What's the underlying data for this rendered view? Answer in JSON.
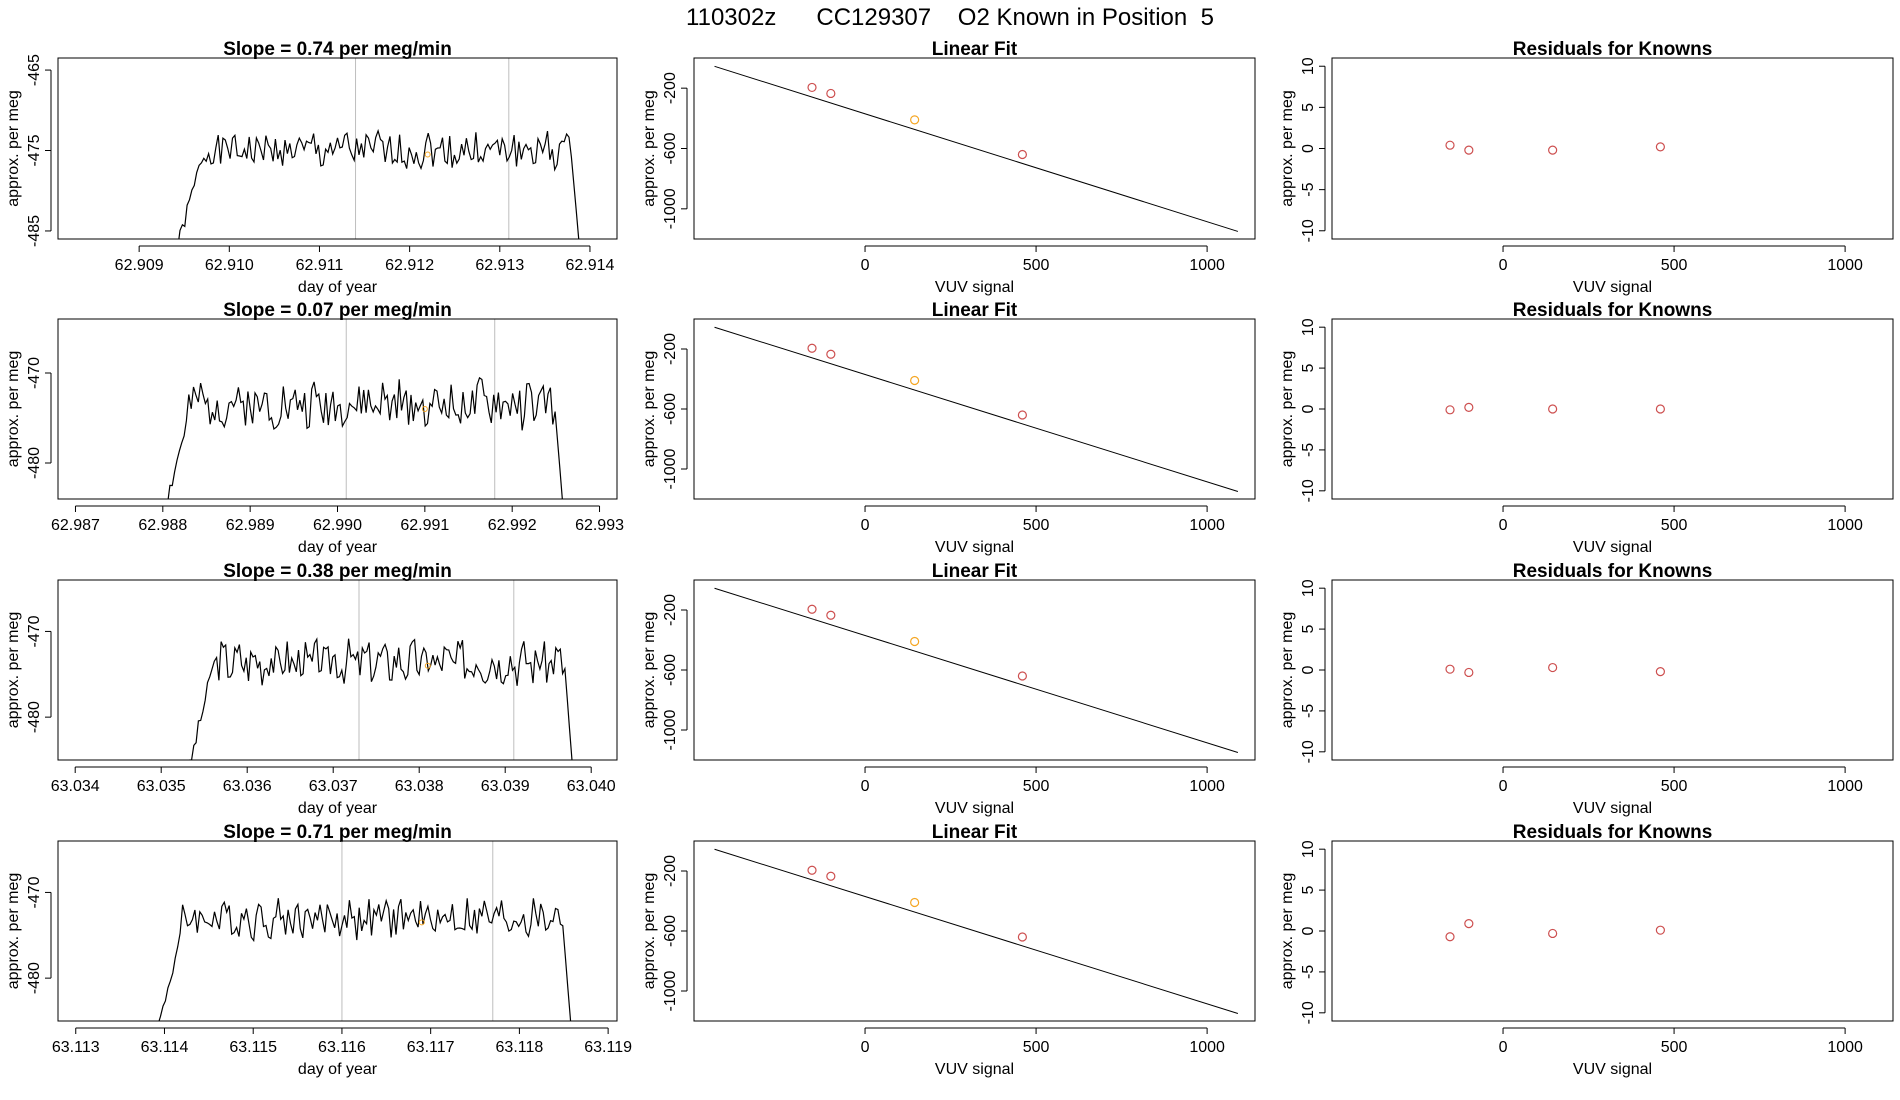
{
  "figure": {
    "title": "110302z      CC129307    O2 Known in Position  5"
  },
  "colors": {
    "line": "#000000",
    "vline": "#bebebe",
    "known_point": "#cd4f4f",
    "sample_point": "#f5a623"
  },
  "chart_data": [
    {
      "type": "line",
      "title": "Slope =  0.74  per meg/min",
      "xlabel": "day of year",
      "ylabel": "approx. per meg",
      "xlim": [
        62.9081,
        62.9143
      ],
      "ylim": [
        -486,
        -463.5
      ],
      "xticks": [
        "62.909",
        "62.910",
        "62.911",
        "62.912",
        "62.913",
        "62.914"
      ],
      "yticks": [
        "-465",
        "-475",
        "-485"
      ],
      "vlines": [
        62.9114,
        62.9131
      ],
      "series": [
        {
          "x_start": 62.9094,
          "x_end": 62.9139,
          "base": -475,
          "amplitude": 2.2,
          "seed": 1
        }
      ],
      "marker": {
        "x": 62.9122,
        "y": -475.5
      },
      "grid": false
    },
    {
      "type": "scatter",
      "title": "Linear Fit",
      "xlabel": "VUV signal",
      "ylabel": "approx. per meg",
      "xlim": [
        -500,
        1140
      ],
      "ylim": [
        -1200,
        0
      ],
      "xticks": [
        "0",
        "500",
        "1000"
      ],
      "yticks": [
        "-200",
        "-600",
        "-1000"
      ],
      "points": [
        {
          "x": -155,
          "y": -195,
          "kind": "known"
        },
        {
          "x": -100,
          "y": -235,
          "kind": "known"
        },
        {
          "x": 145,
          "y": -410,
          "kind": "sample"
        },
        {
          "x": 460,
          "y": -640,
          "kind": "known"
        }
      ],
      "fit_line": {
        "x": [
          -440,
          1090
        ],
        "y": [
          -55,
          -1150
        ]
      },
      "grid": false
    },
    {
      "type": "scatter",
      "title": "Residuals for Knowns",
      "xlabel": "VUV signal",
      "ylabel": "approx. per meg",
      "xlim": [
        -500,
        1140
      ],
      "ylim": [
        -11,
        11
      ],
      "xticks": [
        "0",
        "500",
        "1000"
      ],
      "yticks": [
        "10",
        "5",
        "0",
        "-5",
        "-10"
      ],
      "points": [
        {
          "x": -155,
          "y": 0.4
        },
        {
          "x": -100,
          "y": -0.2
        },
        {
          "x": 145,
          "y": -0.2
        },
        {
          "x": 460,
          "y": 0.2
        }
      ],
      "grid": false
    },
    {
      "type": "line",
      "title": "Slope =  0.07  per meg/min",
      "xlabel": "day of year",
      "ylabel": "approx. per meg",
      "xlim": [
        62.9868,
        62.9932
      ],
      "ylim": [
        -484,
        -464
      ],
      "xticks": [
        "62.987",
        "62.988",
        "62.989",
        "62.990",
        "62.991",
        "62.992",
        "62.993"
      ],
      "yticks": [
        "-470",
        "-480"
      ],
      "vlines": [
        62.9901,
        62.9918
      ],
      "series": [
        {
          "x_start": 62.988,
          "x_end": 62.9926,
          "base": -473.5,
          "amplitude": 2.4,
          "seed": 2
        }
      ],
      "marker": {
        "x": 62.991,
        "y": -474
      },
      "grid": false
    },
    {
      "type": "scatter",
      "title": "Linear Fit",
      "xlabel": "VUV signal",
      "ylabel": "approx. per meg",
      "xlim": [
        -500,
        1140
      ],
      "ylim": [
        -1200,
        0
      ],
      "xticks": [
        "0",
        "500",
        "1000"
      ],
      "yticks": [
        "-200",
        "-600",
        "-1000"
      ],
      "points": [
        {
          "x": -155,
          "y": -195,
          "kind": "known"
        },
        {
          "x": -100,
          "y": -235,
          "kind": "known"
        },
        {
          "x": 145,
          "y": -410,
          "kind": "sample"
        },
        {
          "x": 460,
          "y": -640,
          "kind": "known"
        }
      ],
      "fit_line": {
        "x": [
          -440,
          1090
        ],
        "y": [
          -55,
          -1150
        ]
      },
      "grid": false
    },
    {
      "type": "scatter",
      "title": "Residuals for Knowns",
      "xlabel": "VUV signal",
      "ylabel": "approx. per meg",
      "xlim": [
        -500,
        1140
      ],
      "ylim": [
        -11,
        11
      ],
      "xticks": [
        "0",
        "500",
        "1000"
      ],
      "yticks": [
        "10",
        "5",
        "0",
        "-5",
        "-10"
      ],
      "points": [
        {
          "x": -155,
          "y": -0.1
        },
        {
          "x": -100,
          "y": 0.2
        },
        {
          "x": 145,
          "y": 0.0
        },
        {
          "x": 460,
          "y": 0.0
        }
      ],
      "grid": false
    },
    {
      "type": "line",
      "title": "Slope =  0.38  per meg/min",
      "xlabel": "day of year",
      "ylabel": "approx. per meg",
      "xlim": [
        63.0338,
        63.0403
      ],
      "ylim": [
        -485,
        -464
      ],
      "xticks": [
        "63.034",
        "63.035",
        "63.036",
        "63.037",
        "63.038",
        "63.039",
        "63.040"
      ],
      "yticks": [
        "-470",
        "-480"
      ],
      "vlines": [
        63.0373,
        63.0391
      ],
      "series": [
        {
          "x_start": 63.0353,
          "x_end": 63.0398,
          "base": -473.5,
          "amplitude": 2.3,
          "seed": 3
        }
      ],
      "marker": {
        "x": 63.0381,
        "y": -474
      },
      "grid": false
    },
    {
      "type": "scatter",
      "title": "Linear Fit",
      "xlabel": "VUV signal",
      "ylabel": "approx. per meg",
      "xlim": [
        -500,
        1140
      ],
      "ylim": [
        -1200,
        0
      ],
      "xticks": [
        "0",
        "500",
        "1000"
      ],
      "yticks": [
        "-200",
        "-600",
        "-1000"
      ],
      "points": [
        {
          "x": -155,
          "y": -195,
          "kind": "known"
        },
        {
          "x": -100,
          "y": -235,
          "kind": "known"
        },
        {
          "x": 145,
          "y": -410,
          "kind": "sample"
        },
        {
          "x": 460,
          "y": -640,
          "kind": "known"
        }
      ],
      "fit_line": {
        "x": [
          -440,
          1090
        ],
        "y": [
          -55,
          -1150
        ]
      },
      "grid": false
    },
    {
      "type": "scatter",
      "title": "Residuals for Knowns",
      "xlabel": "VUV signal",
      "ylabel": "approx. per meg",
      "xlim": [
        -500,
        1140
      ],
      "ylim": [
        -11,
        11
      ],
      "xticks": [
        "0",
        "500",
        "1000"
      ],
      "yticks": [
        "10",
        "5",
        "0",
        "-5",
        "-10"
      ],
      "points": [
        {
          "x": -155,
          "y": 0.1
        },
        {
          "x": -100,
          "y": -0.3
        },
        {
          "x": 145,
          "y": 0.3
        },
        {
          "x": 460,
          "y": -0.2
        }
      ],
      "grid": false
    },
    {
      "type": "line",
      "title": "Slope =  0.71  per meg/min",
      "xlabel": "day of year",
      "ylabel": "approx. per meg",
      "xlim": [
        63.1128,
        63.1191
      ],
      "ylim": [
        -485,
        -464
      ],
      "xticks": [
        "63.113",
        "63.114",
        "63.115",
        "63.116",
        "63.117",
        "63.118",
        "63.119"
      ],
      "yticks": [
        "-470",
        "-480"
      ],
      "vlines": [
        63.116,
        63.1177
      ],
      "series": [
        {
          "x_start": 63.1139,
          "x_end": 63.1186,
          "base": -473,
          "amplitude": 2.1,
          "seed": 4
        }
      ],
      "marker": {
        "x": 63.1169,
        "y": -473.5
      },
      "grid": false
    },
    {
      "type": "scatter",
      "title": "Linear Fit",
      "xlabel": "VUV signal",
      "ylabel": "approx. per meg",
      "xlim": [
        -500,
        1140
      ],
      "ylim": [
        -1200,
        0
      ],
      "xticks": [
        "0",
        "500",
        "1000"
      ],
      "yticks": [
        "-200",
        "-600",
        "-1000"
      ],
      "points": [
        {
          "x": -155,
          "y": -195,
          "kind": "known"
        },
        {
          "x": -100,
          "y": -235,
          "kind": "known"
        },
        {
          "x": 145,
          "y": -410,
          "kind": "sample"
        },
        {
          "x": 460,
          "y": -640,
          "kind": "known"
        }
      ],
      "fit_line": {
        "x": [
          -440,
          1090
        ],
        "y": [
          -55,
          -1150
        ]
      },
      "grid": false
    },
    {
      "type": "scatter",
      "title": "Residuals for Knowns",
      "xlabel": "VUV signal",
      "ylabel": "approx. per meg",
      "xlim": [
        -500,
        1140
      ],
      "ylim": [
        -11,
        11
      ],
      "xticks": [
        "0",
        "500",
        "1000"
      ],
      "yticks": [
        "10",
        "5",
        "0",
        "-5",
        "-10"
      ],
      "points": [
        {
          "x": -155,
          "y": -0.7
        },
        {
          "x": -100,
          "y": 0.9
        },
        {
          "x": 145,
          "y": -0.3
        },
        {
          "x": 460,
          "y": 0.1
        }
      ],
      "grid": false
    }
  ]
}
